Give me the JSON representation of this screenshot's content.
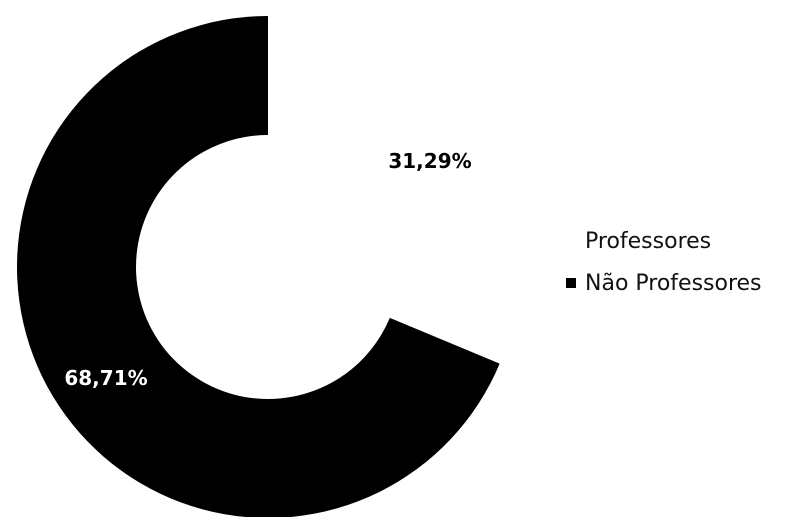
{
  "chart_data": {
    "type": "pie",
    "style": "donut",
    "slices": [
      {
        "name": "Professores",
        "value": 31.29,
        "label": "31,29%",
        "color": "#ffffff",
        "label_color": "#000000"
      },
      {
        "name": "Não Professores",
        "value": 68.71,
        "label": "68,71%",
        "color": "#000000",
        "label_color": "#ffffff"
      }
    ],
    "legend": {
      "placement": "right",
      "entries": [
        {
          "label": "Professores",
          "color": "#ffffff"
        },
        {
          "label": "Não Professores",
          "color": "#000000"
        }
      ]
    },
    "title": ""
  }
}
